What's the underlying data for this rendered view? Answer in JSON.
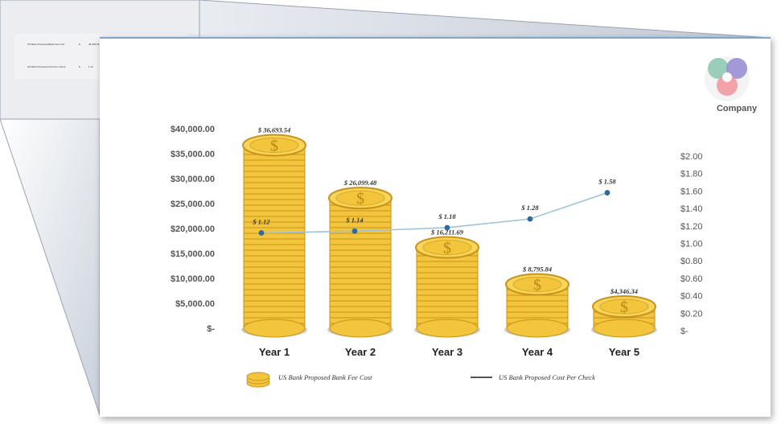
{
  "mini_sheet": {
    "rows": [
      {
        "label": "US Bank Proposed Bank Fee Cost",
        "marker": "$",
        "value": "36,693.54"
      },
      {
        "label": "US Bank Proposed Cost Per Check",
        "marker": "$",
        "value": "1.12"
      }
    ]
  },
  "logo": {
    "text": "Company"
  },
  "chart_data": {
    "type": "bar",
    "categories": [
      "Year 1",
      "Year 2",
      "Year 3",
      "Year 4",
      "Year 5"
    ],
    "series": [
      {
        "name": "US Bank Proposed Bank Fee Cost",
        "kind": "bar",
        "axis": "left",
        "values": [
          36693.54,
          26099.48,
          16211.69,
          8795.84,
          4346.34
        ],
        "labels": [
          "$ 36,693.54",
          "$ 26,099.48",
          "$ 16,211.69",
          "$ 8,795.84",
          "$4,346.34"
        ]
      },
      {
        "name": "US Bank Proposed Cost Per Check",
        "kind": "line",
        "axis": "right",
        "values": [
          1.12,
          1.14,
          1.18,
          1.28,
          1.58
        ],
        "labels": [
          "$ 1.12",
          "$ 1.14",
          "$ 1.18",
          "$ 1.28",
          "$ 1.58"
        ]
      }
    ],
    "left_axis": {
      "range": [
        0,
        40000
      ],
      "ticks": [
        0,
        5000,
        10000,
        15000,
        20000,
        25000,
        30000,
        35000,
        40000
      ],
      "tick_labels": [
        "$-",
        "$5,000.00",
        "$10,000.00",
        "$15,000.00",
        "$20,000.00",
        "$25,000.00",
        "$30,000.00",
        "$35,000.00",
        "$40,000.00"
      ]
    },
    "right_axis": {
      "range": [
        0,
        2.0
      ],
      "ticks": [
        0,
        0.2,
        0.4,
        0.6,
        0.8,
        1.0,
        1.2,
        1.4,
        1.6,
        1.8,
        2.0
      ],
      "tick_labels": [
        "$-",
        "$0.20",
        "$0.40",
        "$0.60",
        "$0.80",
        "$1.00",
        "$1.20",
        "$1.40",
        "$1.60",
        "$1.80",
        "$2.00"
      ]
    },
    "grid": false,
    "legend": "bottom",
    "colors": {
      "coin": "#f2c53d",
      "coin_edge": "#c9931a",
      "line": "#9ec5dc",
      "marker": "#2e6a9e"
    }
  }
}
